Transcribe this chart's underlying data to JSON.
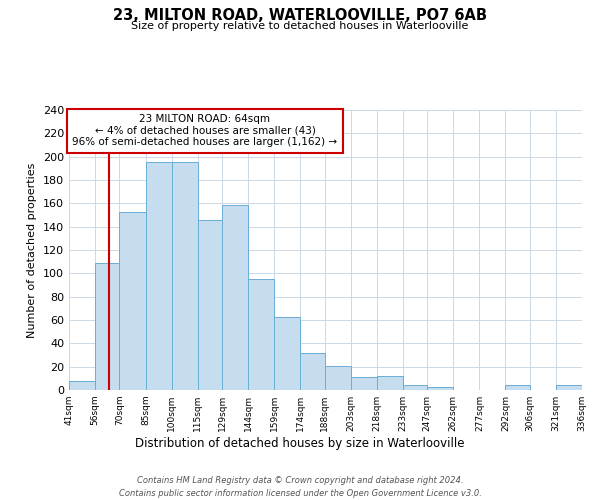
{
  "title": "23, MILTON ROAD, WATERLOOVILLE, PO7 6AB",
  "subtitle": "Size of property relative to detached houses in Waterlooville",
  "xlabel": "Distribution of detached houses by size in Waterlooville",
  "ylabel": "Number of detached properties",
  "bar_edges": [
    41,
    56,
    70,
    85,
    100,
    115,
    129,
    144,
    159,
    174,
    188,
    203,
    218,
    233,
    247,
    262,
    277,
    292,
    306,
    321,
    336
  ],
  "bar_heights": [
    8,
    109,
    153,
    195,
    195,
    146,
    159,
    95,
    63,
    32,
    21,
    11,
    12,
    4,
    3,
    0,
    0,
    4,
    0,
    4
  ],
  "bar_color": "#c5ddef",
  "bar_edgecolor": "#6aaed6",
  "property_line_x": 64,
  "property_line_color": "#cc0000",
  "ylim": [
    0,
    240
  ],
  "yticks": [
    0,
    20,
    40,
    60,
    80,
    100,
    120,
    140,
    160,
    180,
    200,
    220,
    240
  ],
  "tick_labels": [
    "41sqm",
    "56sqm",
    "70sqm",
    "85sqm",
    "100sqm",
    "115sqm",
    "129sqm",
    "144sqm",
    "159sqm",
    "174sqm",
    "188sqm",
    "203sqm",
    "218sqm",
    "233sqm",
    "247sqm",
    "262sqm",
    "277sqm",
    "292sqm",
    "306sqm",
    "321sqm",
    "336sqm"
  ],
  "annotation_title": "23 MILTON ROAD: 64sqm",
  "annotation_line1": "← 4% of detached houses are smaller (43)",
  "annotation_line2": "96% of semi-detached houses are larger (1,162) →",
  "annotation_box_color": "#ffffff",
  "annotation_box_edgecolor": "#cc0000",
  "footer_line1": "Contains HM Land Registry data © Crown copyright and database right 2024.",
  "footer_line2": "Contains public sector information licensed under the Open Government Licence v3.0.",
  "background_color": "#ffffff",
  "grid_color": "#ccd8e4"
}
